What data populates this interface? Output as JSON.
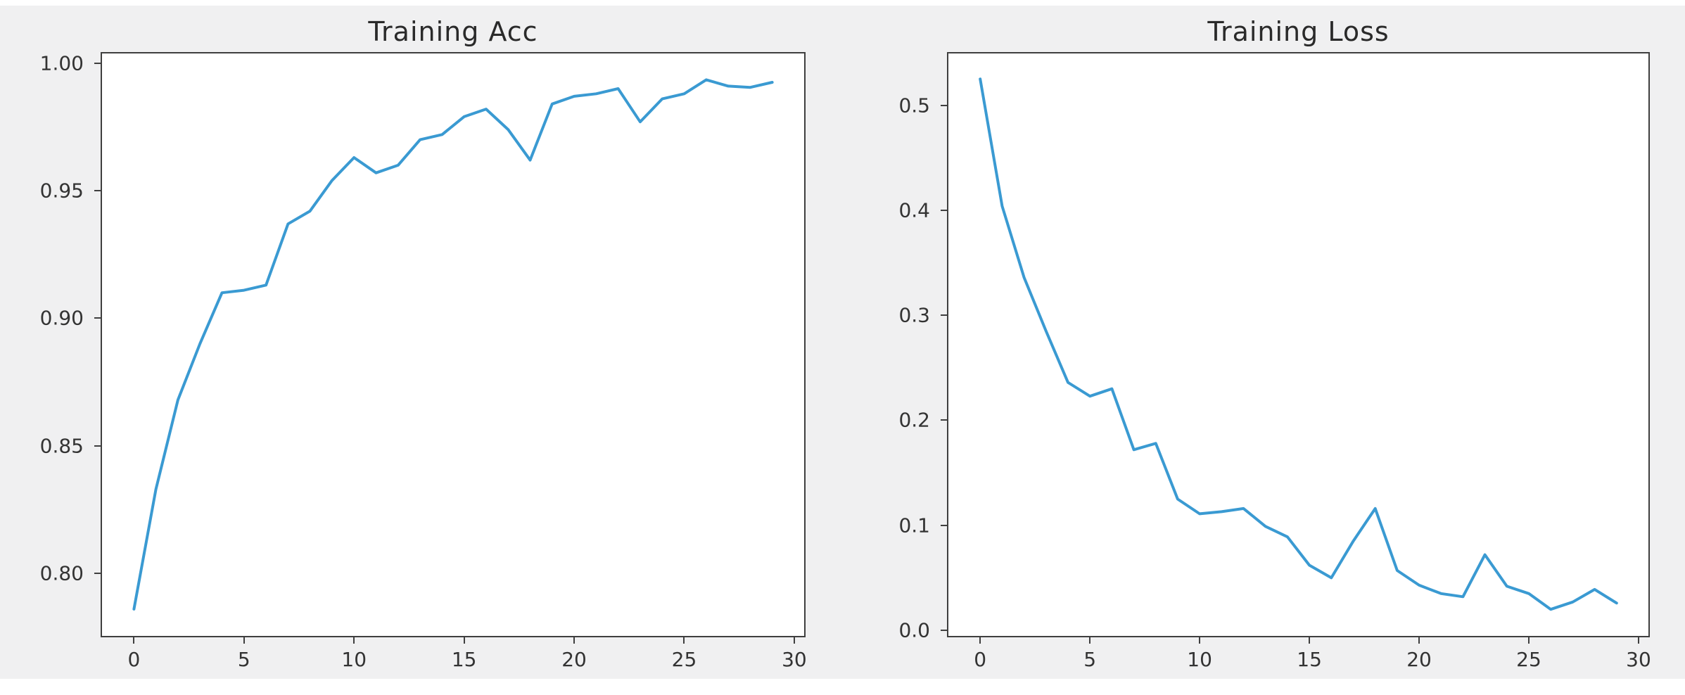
{
  "figure": {
    "page_background": "#ffffff",
    "figure_background": "#f0f0f1",
    "plot_background": "#ffffff",
    "line_color": "#3a9ad2",
    "spine_color": "#3f3f3f",
    "tick_text_color": "#333333",
    "title_text_color": "#2a2a2a"
  },
  "chart_data": [
    {
      "type": "line",
      "title": "Training Acc",
      "xlabel": "",
      "ylabel": "",
      "grid": false,
      "legend": null,
      "xlim": [
        -1.45,
        30.45
      ],
      "ylim": [
        0.7755,
        1.0038
      ],
      "xticks": [
        0,
        5,
        10,
        15,
        20,
        25,
        30
      ],
      "xtick_labels": [
        "0",
        "5",
        "10",
        "15",
        "20",
        "25",
        "30"
      ],
      "yticks": [
        0.8,
        0.85,
        0.9,
        0.95,
        1.0
      ],
      "ytick_labels": [
        "0.80",
        "0.85",
        "0.90",
        "0.95",
        "1.00"
      ],
      "x": [
        0,
        1,
        2,
        3,
        4,
        5,
        6,
        7,
        8,
        9,
        10,
        11,
        12,
        13,
        14,
        15,
        16,
        17,
        18,
        19,
        20,
        21,
        22,
        23,
        24,
        25,
        26,
        27,
        28,
        29
      ],
      "values": [
        0.786,
        0.833,
        0.868,
        0.89,
        0.91,
        0.911,
        0.913,
        0.937,
        0.942,
        0.954,
        0.963,
        0.957,
        0.96,
        0.97,
        0.972,
        0.979,
        0.982,
        0.974,
        0.962,
        0.984,
        0.987,
        0.988,
        0.99,
        0.977,
        0.986,
        0.988,
        0.9935,
        0.991,
        0.9905,
        0.9925
      ]
    },
    {
      "type": "line",
      "title": "Training Loss",
      "xlabel": "",
      "ylabel": "",
      "grid": false,
      "legend": null,
      "xlim": [
        -1.45,
        30.45
      ],
      "ylim": [
        -0.0053,
        0.5493
      ],
      "xticks": [
        0,
        5,
        10,
        15,
        20,
        25,
        30
      ],
      "xtick_labels": [
        "0",
        "5",
        "10",
        "15",
        "20",
        "25",
        "30"
      ],
      "yticks": [
        0.0,
        0.1,
        0.2,
        0.3,
        0.4,
        0.5
      ],
      "ytick_labels": [
        "0.0",
        "0.1",
        "0.2",
        "0.3",
        "0.4",
        "0.5"
      ],
      "x": [
        0,
        1,
        2,
        3,
        4,
        5,
        6,
        7,
        8,
        9,
        10,
        11,
        12,
        13,
        14,
        15,
        16,
        17,
        18,
        19,
        20,
        21,
        22,
        23,
        24,
        25,
        26,
        27,
        28,
        29
      ],
      "values": [
        0.525,
        0.404,
        0.336,
        0.285,
        0.236,
        0.223,
        0.23,
        0.172,
        0.178,
        0.125,
        0.111,
        0.113,
        0.116,
        0.099,
        0.089,
        0.062,
        0.05,
        0.085,
        0.116,
        0.057,
        0.043,
        0.035,
        0.032,
        0.072,
        0.042,
        0.035,
        0.02,
        0.027,
        0.039,
        0.026
      ]
    }
  ]
}
